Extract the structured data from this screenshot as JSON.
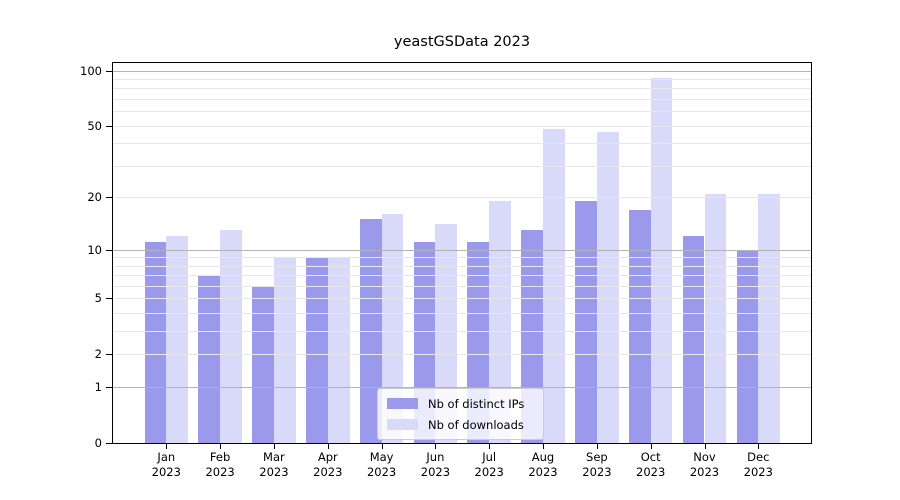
{
  "chart_data": {
    "type": "bar",
    "title": "yeastGSData 2023",
    "categories": [
      "Jan 2023",
      "Feb 2023",
      "Mar 2023",
      "Apr 2023",
      "May 2023",
      "Jun 2023",
      "Jul 2023",
      "Aug 2023",
      "Sep 2023",
      "Oct 2023",
      "Nov 2023",
      "Dec 2023"
    ],
    "x_tick_months": [
      "Jan",
      "Feb",
      "Mar",
      "Apr",
      "May",
      "Jun",
      "Jul",
      "Aug",
      "Sep",
      "Oct",
      "Nov",
      "Dec"
    ],
    "x_tick_year": "2023",
    "series": [
      {
        "name": "Nb of distinct IPs",
        "color": "#9a99ec",
        "values": [
          11,
          7,
          6,
          9,
          15,
          11,
          11,
          13,
          19,
          17,
          12,
          10
        ]
      },
      {
        "name": "Nb of downloads",
        "color": "#d9d9f9",
        "values": [
          12,
          13,
          9,
          9,
          16,
          14,
          19,
          48,
          46,
          91,
          21,
          21
        ]
      }
    ],
    "xlabel": "",
    "ylabel": "",
    "y_axis": {
      "scale": "log1p",
      "tick_values": [
        0,
        1,
        2,
        5,
        10,
        20,
        50,
        100
      ],
      "tick_labels": [
        "0",
        "1",
        "2",
        "5",
        "10",
        "20",
        "50",
        "100"
      ],
      "major_gridlines": [
        1,
        10,
        100
      ],
      "minor_gridlines": [
        2,
        3,
        4,
        5,
        6,
        7,
        8,
        9,
        20,
        30,
        40,
        50,
        60,
        70,
        80,
        90
      ],
      "ylim": [
        0,
        111
      ]
    },
    "grid": true,
    "legend": {
      "position": "lower center",
      "entries": [
        "Nb of distinct IPs",
        "Nb of downloads"
      ]
    }
  },
  "colors": {
    "bar_distinct_ips": "#9a99ec",
    "bar_downloads": "#d9d9f9",
    "major_grid": "#b3b3b3",
    "minor_grid": "#e7e7e7",
    "spine": "#000000",
    "text": "#000000",
    "legend_border": "#cccccc"
  }
}
